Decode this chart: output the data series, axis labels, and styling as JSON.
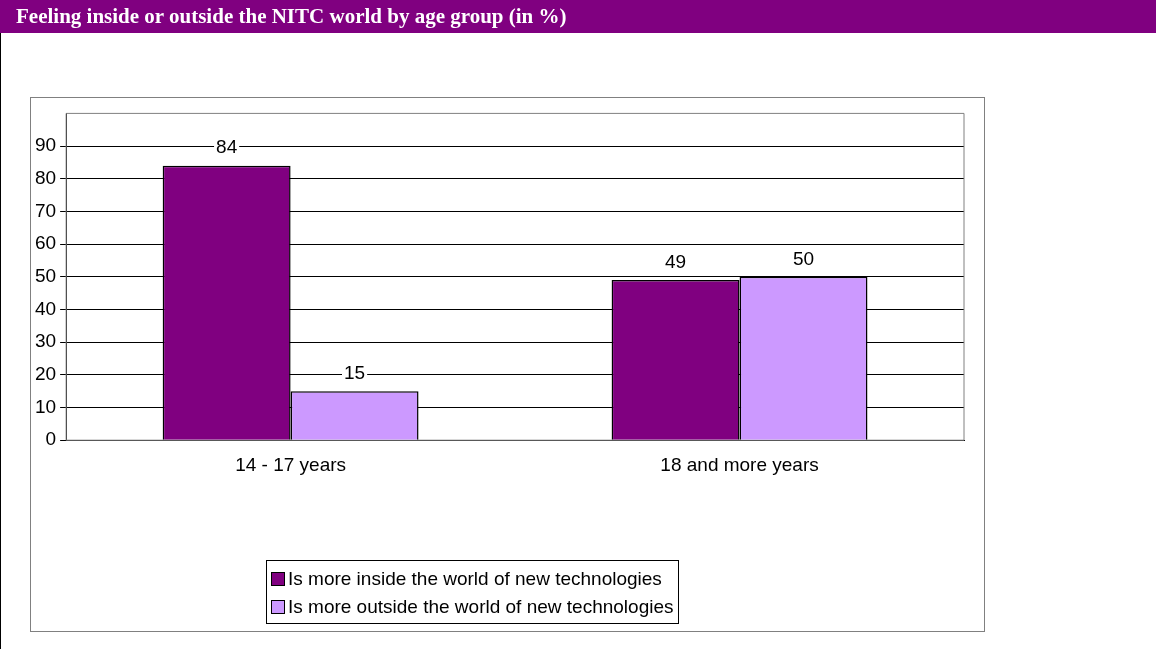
{
  "chart_data": {
    "type": "bar",
    "title": "Feeling inside or outside the NITC world by age group (in %)",
    "categories": [
      "14 - 17 years",
      "18 and more years"
    ],
    "series": [
      {
        "name": "Is more inside the world of new technologies",
        "color": "#800080",
        "values": [
          84,
          49
        ]
      },
      {
        "name": "Is more outside the world of new technologies",
        "color": "#cc99ff",
        "values": [
          15,
          50
        ]
      }
    ],
    "ylim": [
      0,
      100
    ],
    "yticks": [
      0,
      10,
      20,
      30,
      40,
      50,
      60,
      70,
      80,
      90
    ],
    "grid": "y",
    "legend": "bottom",
    "data_labels": true
  }
}
